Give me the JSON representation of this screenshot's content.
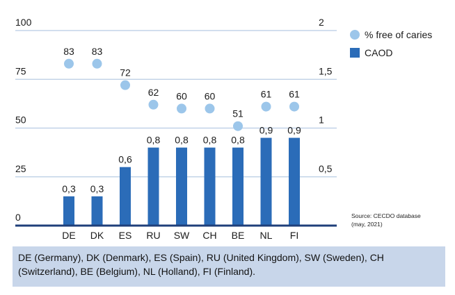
{
  "chart_data": {
    "type": "bar",
    "categories": [
      "DE",
      "DK",
      "ES",
      "RU",
      "SW",
      "CH",
      "BE",
      "NL",
      "FI"
    ],
    "series": [
      {
        "name": "% free of caries",
        "kind": "scatter",
        "axis": "left",
        "values": [
          83,
          83,
          72,
          62,
          60,
          60,
          51,
          61,
          61
        ],
        "labels": [
          "83",
          "83",
          "72",
          "62",
          "60",
          "60",
          "51",
          "61",
          "61"
        ],
        "color": "#9cc6ea"
      },
      {
        "name": "CAOD",
        "kind": "bar",
        "axis": "right",
        "values": [
          0.3,
          0.3,
          0.6,
          0.8,
          0.8,
          0.8,
          0.8,
          0.9,
          0.9
        ],
        "labels": [
          "0,3",
          "0,3",
          "0,6",
          "0,8",
          "0,8",
          "0,8",
          "0,8",
          "0,9",
          "0,9"
        ],
        "color": "#2b6cb8"
      }
    ],
    "left_axis": {
      "range": [
        0,
        100
      ],
      "ticks": [
        0,
        25,
        50,
        75,
        100
      ],
      "tick_labels": [
        "0",
        "25",
        "50",
        "75",
        "100"
      ]
    },
    "right_axis": {
      "range": [
        0,
        2
      ],
      "ticks": [
        0.5,
        1,
        1.5,
        2
      ],
      "tick_labels": [
        "0,5",
        "1",
        "1,5",
        "2"
      ]
    },
    "grid": true,
    "legend_position": "top-right"
  },
  "colors": {
    "axis": "#1f3f7a",
    "grid": "#b7cbe3",
    "caption_bg": "#c8d6ea"
  },
  "source_note": [
    "Source:  CECDO database",
    "(may, 2021)"
  ],
  "caption": "DE (Germany), DK (Denmark), ES (Spain), RU (United Kingdom), SW (Sweden), CH (Switzerland), BE (Belgium), NL (Holland), FI (Finland)."
}
